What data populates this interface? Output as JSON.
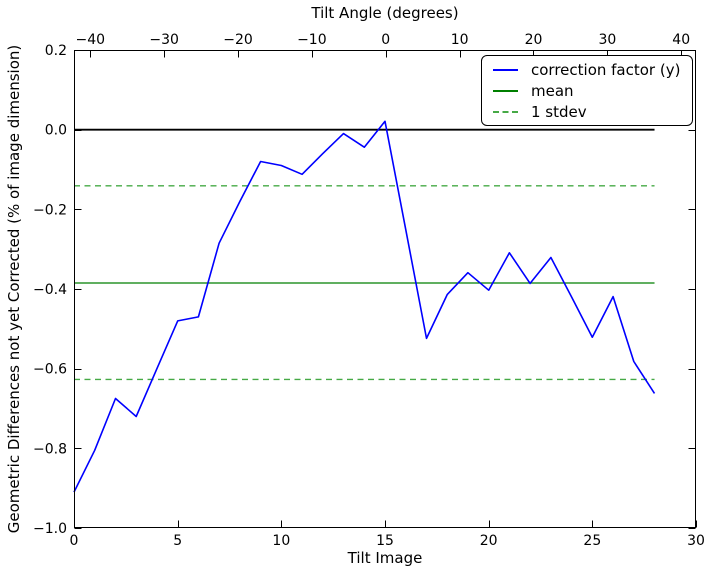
{
  "figure": {
    "background": "#ffffff"
  },
  "chart_data": {
    "type": "line",
    "xlabel": "Tilt Image",
    "ylabel": "Geometric Differences not yet Corrected (% of image dimension)",
    "xlim": [
      0,
      30
    ],
    "ylim": [
      -1.0,
      0.2
    ],
    "grid": "off",
    "legend_position": "upper right",
    "top_axis": {
      "label": "Tilt Angle (degrees)",
      "lim": [
        -42.2,
        42.0
      ],
      "ticks": {
        "values": [
          -40,
          -30,
          -20,
          -10,
          0,
          10,
          20,
          30,
          40
        ],
        "labels": [
          "−40",
          "−30",
          "−20",
          "−10",
          "0",
          "10",
          "20",
          "30",
          "40"
        ]
      }
    },
    "x_ticks_bottom": {
      "values": [
        0,
        5,
        10,
        15,
        20,
        25,
        30
      ],
      "labels": [
        "0",
        "5",
        "10",
        "15",
        "20",
        "25",
        "30"
      ]
    },
    "y_ticks": {
      "values": [
        0.2,
        0.0,
        -0.2,
        -0.4,
        -0.6,
        -0.8,
        -1.0
      ],
      "labels": [
        "0.2",
        "0.0",
        "−0.2",
        "−0.4",
        "−0.6",
        "−0.8",
        "−1.0"
      ]
    },
    "series": [
      {
        "name": "correction factor (y)",
        "color": "#0000ff",
        "style": "solid",
        "x": [
          0,
          1,
          2,
          3,
          4,
          5,
          6,
          7,
          8,
          9,
          10,
          11,
          12,
          13,
          14,
          15,
          16,
          17,
          18,
          19,
          20,
          21,
          22,
          23,
          24,
          25,
          26,
          27,
          28
        ],
        "y": [
          -0.91,
          -0.805,
          -0.675,
          -0.72,
          -0.6,
          -0.48,
          -0.47,
          -0.285,
          -0.18,
          -0.08,
          -0.09,
          -0.112,
          -0.06,
          -0.01,
          -0.044,
          0.021,
          -0.25,
          -0.524,
          -0.414,
          -0.359,
          -0.403,
          -0.309,
          -0.386,
          -0.321,
          -0.42,
          -0.521,
          -0.419,
          -0.582,
          -0.662
        ]
      },
      {
        "name": "mean",
        "color": "#007f00",
        "style": "solid",
        "y_value": -0.385,
        "x_range": [
          0,
          28
        ]
      },
      {
        "name": "1 stdev",
        "color": "#46a946",
        "style": "dashed",
        "y_values": [
          -0.141,
          -0.627
        ],
        "x_range": [
          0,
          28
        ]
      }
    ],
    "zero_line": {
      "color": "#000000",
      "y_value": 0.0,
      "x_range": [
        0,
        28
      ]
    }
  }
}
